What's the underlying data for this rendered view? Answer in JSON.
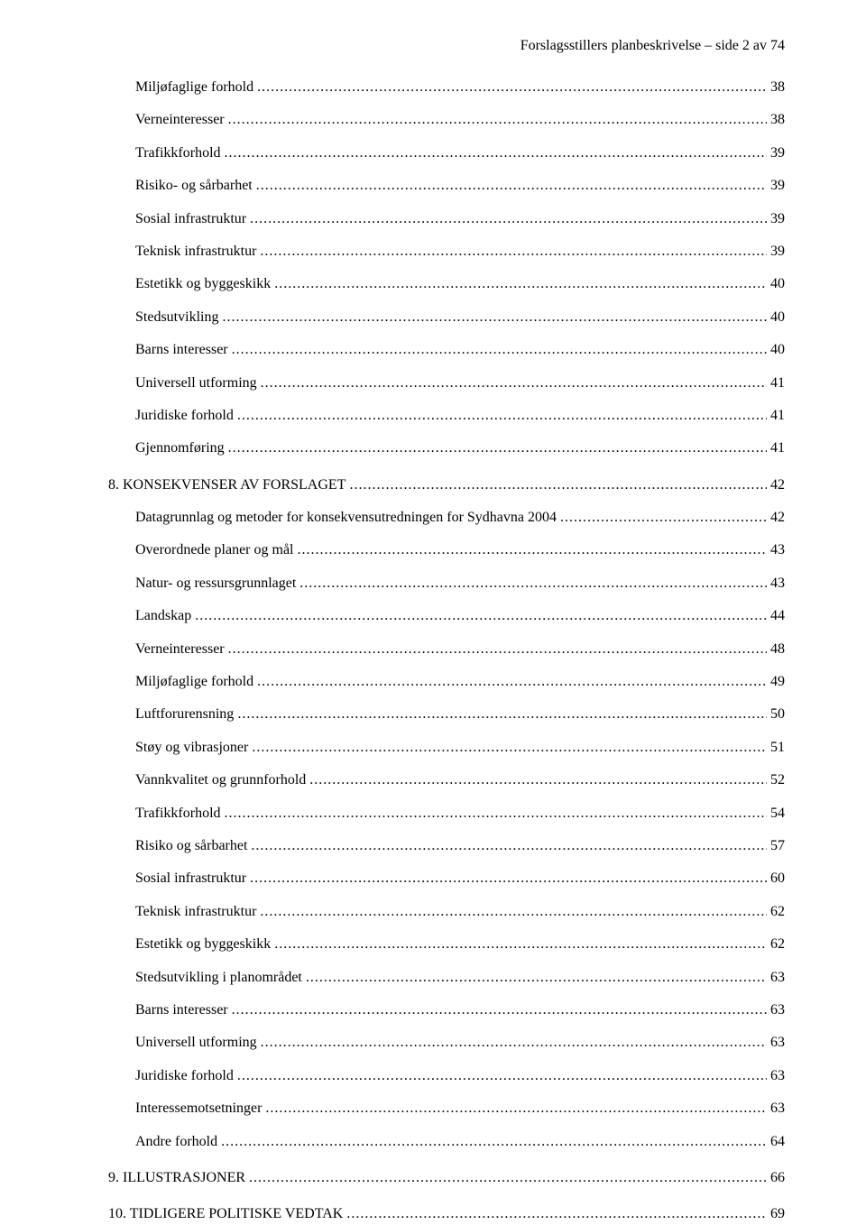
{
  "header": "Forslagsstillers planbeskrivelse – side 2 av 74",
  "toc": [
    {
      "level": 1,
      "label": "Miljøfaglige forhold",
      "page": "38"
    },
    {
      "level": 1,
      "label": "Verneinteresser",
      "page": "38"
    },
    {
      "level": 1,
      "label": "Trafikkforhold",
      "page": "39"
    },
    {
      "level": 1,
      "label": "Risiko- og sårbarhet",
      "page": "39"
    },
    {
      "level": 1,
      "label": "Sosial infrastruktur",
      "page": "39"
    },
    {
      "level": 1,
      "label": "Teknisk infrastruktur",
      "page": "39"
    },
    {
      "level": 1,
      "label": "Estetikk og byggeskikk",
      "page": "40"
    },
    {
      "level": 1,
      "label": "Stedsutvikling",
      "page": "40"
    },
    {
      "level": 1,
      "label": "Barns interesser",
      "page": "40"
    },
    {
      "level": 1,
      "label": "Universell utforming",
      "page": "41"
    },
    {
      "level": 1,
      "label": "Juridiske forhold",
      "page": "41"
    },
    {
      "level": 1,
      "label": "Gjennomføring",
      "page": "41"
    },
    {
      "level": 0,
      "label": "8. KONSEKVENSER AV FORSLAGET",
      "page": "42"
    },
    {
      "level": 1,
      "label": "Datagrunnlag og metoder for konsekvensutredningen for Sydhavna 2004",
      "page": "42"
    },
    {
      "level": 1,
      "label": "Overordnede planer og mål",
      "page": "43"
    },
    {
      "level": 1,
      "label": "Natur- og ressursgrunnlaget",
      "page": "43"
    },
    {
      "level": 1,
      "label": "Landskap",
      "page": "44"
    },
    {
      "level": 1,
      "label": "Verneinteresser",
      "page": "48"
    },
    {
      "level": 1,
      "label": "Miljøfaglige forhold",
      "page": "49"
    },
    {
      "level": 1,
      "label": "Luftforurensning",
      "page": "50"
    },
    {
      "level": 1,
      "label": "Støy og vibrasjoner",
      "page": "51"
    },
    {
      "level": 1,
      "label": "Vannkvalitet og grunnforhold",
      "page": "52"
    },
    {
      "level": 1,
      "label": "Trafikkforhold",
      "page": "54"
    },
    {
      "level": 1,
      "label": "Risiko og sårbarhet",
      "page": "57"
    },
    {
      "level": 1,
      "label": "Sosial infrastruktur",
      "page": "60"
    },
    {
      "level": 1,
      "label": "Teknisk infrastruktur",
      "page": "62"
    },
    {
      "level": 1,
      "label": "Estetikk og byggeskikk",
      "page": "62"
    },
    {
      "level": 1,
      "label": "Stedsutvikling i planområdet",
      "page": "63"
    },
    {
      "level": 1,
      "label": "Barns interesser",
      "page": "63"
    },
    {
      "level": 1,
      "label": "Universell utforming",
      "page": "63"
    },
    {
      "level": 1,
      "label": "Juridiske forhold",
      "page": "63"
    },
    {
      "level": 1,
      "label": "Interessemotsetninger",
      "page": "63"
    },
    {
      "level": 1,
      "label": "Andre forhold",
      "page": "64"
    },
    {
      "level": 0,
      "label": "9. ILLUSTRASJONER",
      "page": "66"
    },
    {
      "level": 0,
      "label": "10. TIDLIGERE POLITISKE VEDTAK",
      "page": "69"
    }
  ],
  "dot_fill": "........................................................................................................................................................................................................................................................................................................................"
}
